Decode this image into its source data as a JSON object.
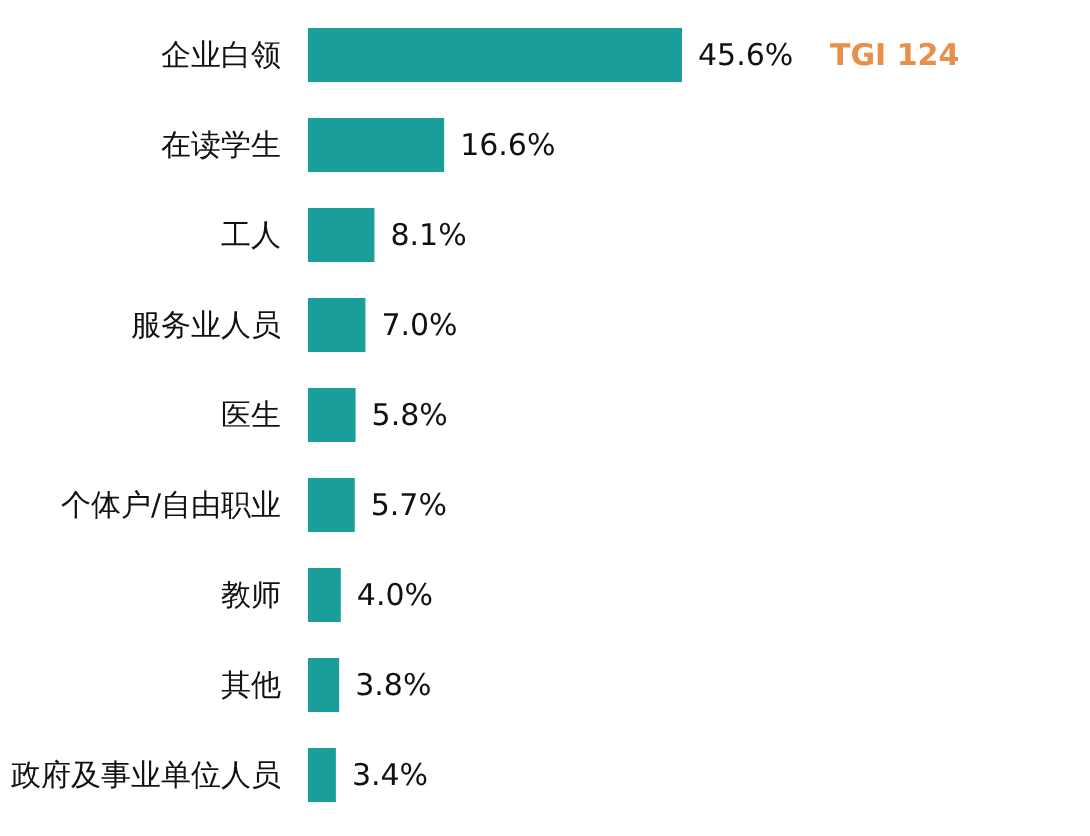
{
  "chart_data": {
    "type": "bar",
    "orientation": "horizontal",
    "categories": [
      "企业白领",
      "在读学生",
      "工人",
      "服务业人员",
      "医生",
      "个体户/自由职业",
      "教师",
      "其他",
      "政府及事业单位人员"
    ],
    "values": [
      45.6,
      16.6,
      8.1,
      7.0,
      5.8,
      5.7,
      4.0,
      3.8,
      3.4
    ],
    "value_labels": [
      "45.6%",
      "16.6%",
      "8.1%",
      "7.0%",
      "5.8%",
      "5.7%",
      "4.0%",
      "3.8%",
      "3.4%"
    ],
    "color": "#1a9e9a",
    "tick_labels": "y",
    "grid": false,
    "annotations": [
      "TGI 124"
    ]
  }
}
